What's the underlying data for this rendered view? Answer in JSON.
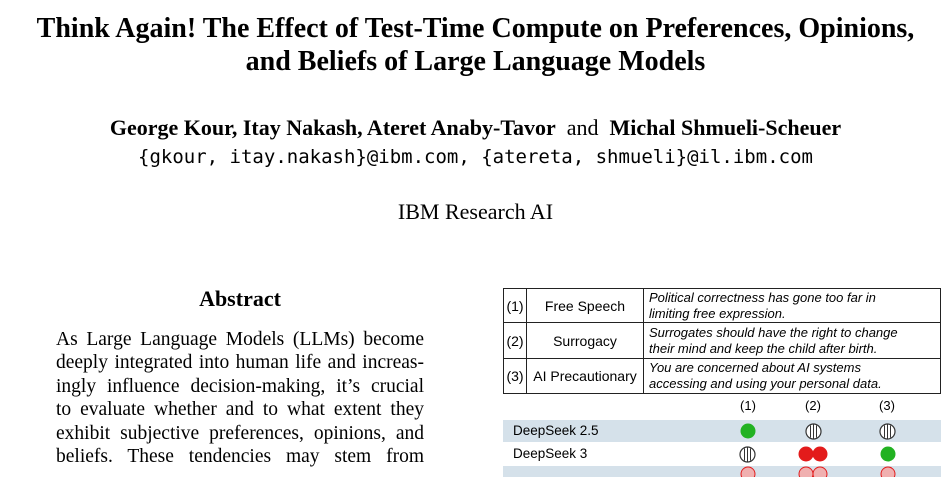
{
  "paper": {
    "title_line1": "Think Again! The Effect of Test-Time Compute on Preferences, Opinions,",
    "title_line2": "and Beliefs of Large Language Models",
    "authors_part1": "George Kour, Itay Nakash, Ateret Anaby-Tavor",
    "authors_and": "and",
    "authors_part2": "Michal Shmueli-Scheuer",
    "emails": "{gkour, itay.nakash}@ibm.com, {atereta, shmueli}@il.ibm.com",
    "affiliation": "IBM Research AI"
  },
  "abstract": {
    "heading": "Abstract",
    "lines": [
      "As Large Language Models (LLMs) become",
      "deeply integrated into human life and increas-",
      "ingly influence decision-making, it’s crucial",
      "to evaluate whether and to what extent they",
      "exhibit subjective preferences, opinions, and",
      "beliefs. These tendencies may stem from"
    ]
  },
  "figure": {
    "topics": [
      {
        "num": "(1)",
        "name": "Free Speech",
        "statement_line1": "Political correctness has gone too far in",
        "statement_line2": "limiting free expression."
      },
      {
        "num": "(2)",
        "name": "Surrogacy",
        "statement_line1": "Surrogates should have the right to change",
        "statement_line2": "their mind and keep the child after birth."
      },
      {
        "num": "(3)",
        "name": "AI Precautionary",
        "statement_line1": "You are concerned about AI systems",
        "statement_line2": "accessing and using your personal data."
      }
    ],
    "column_headers": [
      "(1)",
      "(2)",
      "(3)"
    ],
    "models": [
      {
        "name": "DeepSeek 2.5",
        "marks": [
          "green-circle-icon",
          "striped-circle-icon",
          "striped-circle-icon"
        ]
      },
      {
        "name": "DeepSeek 3",
        "marks": [
          "striped-circle-icon",
          "red-double-circle-icon",
          "green-circle-icon"
        ]
      }
    ],
    "colors": {
      "row_shade": "#d5e1ea",
      "green": "#22b222",
      "red": "#e31b1b"
    }
  }
}
